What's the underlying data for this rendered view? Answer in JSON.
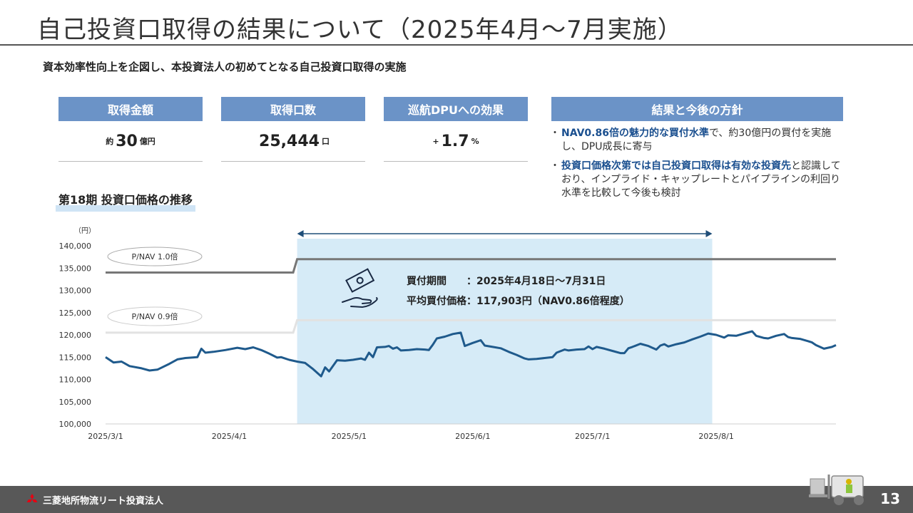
{
  "title": "自己投資口取得の結果について（2025年4月～7月実施）",
  "subtitle": "資本効率性向上を企図し、本投資法人の初めてとなる自己投資口取得の実施",
  "kpis": [
    {
      "header": "取得金額",
      "prefix": "約",
      "value": "30",
      "suffix": "億円"
    },
    {
      "header": "取得口数",
      "prefix": "",
      "value": "25,444",
      "suffix": "口"
    },
    {
      "header": "巡航DPUへの効果",
      "prefix": "+",
      "value": "1.7",
      "suffix": "%"
    }
  ],
  "result": {
    "header": "結果と今後の方針",
    "bullets": [
      {
        "highlight": "NAV0.86倍の魅力的な買付水準",
        "text": "で、約30億円の買付を実施し、DPU成長に寄与"
      },
      {
        "highlight": "投資口価格次第では自己投資口取得は有効な投資先",
        "text": "と認識しており、インプライド・キャップレートとパイプラインの利回り水準を比較して今後も検討"
      }
    ]
  },
  "section_label": "第18期 投資口価格の推移",
  "annotation": {
    "period_label": "買付期間　　：2025年4月18日～7月31日",
    "price_label": "平均買付価格：117,903円（NAV0.86倍程度）"
  },
  "footer": {
    "company": "三菱地所物流リート投資法人",
    "page": "13"
  },
  "colors": {
    "accent": "#6b93c7",
    "price_line": "#1f5a8c",
    "highlight_band": "#d6ebf7",
    "nav_line": "#777777"
  },
  "icons": [
    "money-hand-icon",
    "mitsubishi-logo-icon",
    "forklift-icon"
  ],
  "chart_data": {
    "type": "line",
    "yunit": "（円）",
    "ylim": [
      100000,
      140000
    ],
    "yticks": [
      "100,000",
      "105,000",
      "110,000",
      "115,000",
      "120,000",
      "125,000",
      "130,000",
      "135,000",
      "140,000"
    ],
    "ytick_values": [
      100000,
      105000,
      110000,
      115000,
      120000,
      125000,
      130000,
      135000,
      140000
    ],
    "xlim": [
      "2025-03-01",
      "2025-08-31"
    ],
    "xticks": [
      "2025/3/1",
      "2025/4/1",
      "2025/5/1",
      "2025/6/1",
      "2025/7/1",
      "2025/8/1"
    ],
    "xtick_dates": [
      "2025-03-01",
      "2025-04-01",
      "2025-05-01",
      "2025-06-01",
      "2025-07-01",
      "2025-08-01"
    ],
    "buyback_period": [
      "2025-04-18",
      "2025-07-31"
    ],
    "series": [
      {
        "type": "step",
        "label": "P/NAV 1.0倍",
        "points": [
          [
            "2025-03-01",
            134000
          ],
          [
            "2025-04-17",
            134000
          ],
          [
            "2025-04-18",
            137000
          ],
          [
            "2025-08-31",
            137000
          ]
        ]
      },
      {
        "type": "step",
        "label": "P/NAV 0.9倍",
        "points": [
          [
            "2025-03-01",
            120500
          ],
          [
            "2025-04-17",
            120500
          ],
          [
            "2025-04-18",
            123300
          ],
          [
            "2025-08-31",
            123300
          ]
        ]
      },
      {
        "type": "price",
        "points": [
          [
            "2025-03-01",
            115000
          ],
          [
            "2025-03-03",
            113800
          ],
          [
            "2025-03-05",
            114000
          ],
          [
            "2025-03-07",
            113000
          ],
          [
            "2025-03-10",
            112500
          ],
          [
            "2025-03-12",
            112000
          ],
          [
            "2025-03-14",
            112200
          ],
          [
            "2025-03-17",
            113500
          ],
          [
            "2025-03-19",
            114500
          ],
          [
            "2025-03-21",
            114800
          ],
          [
            "2025-03-24",
            115000
          ],
          [
            "2025-03-25",
            116900
          ],
          [
            "2025-03-26",
            116000
          ],
          [
            "2025-03-28",
            116200
          ],
          [
            "2025-03-31",
            116600
          ],
          [
            "2025-04-03",
            117100
          ],
          [
            "2025-04-05",
            116800
          ],
          [
            "2025-04-07",
            117200
          ],
          [
            "2025-04-09",
            116600
          ],
          [
            "2025-04-11",
            115800
          ],
          [
            "2025-04-13",
            114900
          ],
          [
            "2025-04-14",
            115000
          ],
          [
            "2025-04-16",
            114400
          ],
          [
            "2025-04-18",
            114000
          ],
          [
            "2025-04-20",
            113700
          ],
          [
            "2025-04-22",
            112300
          ],
          [
            "2025-04-24",
            110700
          ],
          [
            "2025-04-25",
            112700
          ],
          [
            "2025-04-26",
            111800
          ],
          [
            "2025-04-28",
            114300
          ],
          [
            "2025-04-30",
            114200
          ],
          [
            "2025-05-02",
            114400
          ],
          [
            "2025-05-04",
            114700
          ],
          [
            "2025-05-05",
            114400
          ],
          [
            "2025-05-06",
            116000
          ],
          [
            "2025-05-07",
            115000
          ],
          [
            "2025-05-08",
            117200
          ],
          [
            "2025-05-10",
            117300
          ],
          [
            "2025-05-11",
            117500
          ],
          [
            "2025-05-12",
            116900
          ],
          [
            "2025-05-13",
            117200
          ],
          [
            "2025-05-14",
            116500
          ],
          [
            "2025-05-16",
            116600
          ],
          [
            "2025-05-18",
            116800
          ],
          [
            "2025-05-20",
            116700
          ],
          [
            "2025-05-21",
            116600
          ],
          [
            "2025-05-22",
            117800
          ],
          [
            "2025-05-23",
            119200
          ],
          [
            "2025-05-25",
            119600
          ],
          [
            "2025-05-27",
            120200
          ],
          [
            "2025-05-29",
            120500
          ],
          [
            "2025-05-30",
            117500
          ],
          [
            "2025-06-01",
            118200
          ],
          [
            "2025-06-03",
            118800
          ],
          [
            "2025-06-04",
            117600
          ],
          [
            "2025-06-06",
            117300
          ],
          [
            "2025-06-08",
            117000
          ],
          [
            "2025-06-10",
            116200
          ],
          [
            "2025-06-12",
            115500
          ],
          [
            "2025-06-14",
            114700
          ],
          [
            "2025-06-15",
            114500
          ],
          [
            "2025-06-17",
            114600
          ],
          [
            "2025-06-19",
            114800
          ],
          [
            "2025-06-21",
            115000
          ],
          [
            "2025-06-22",
            116000
          ],
          [
            "2025-06-24",
            116700
          ],
          [
            "2025-06-25",
            116500
          ],
          [
            "2025-06-27",
            116700
          ],
          [
            "2025-06-29",
            116800
          ],
          [
            "2025-06-30",
            117400
          ],
          [
            "2025-07-01",
            116800
          ],
          [
            "2025-07-02",
            117300
          ],
          [
            "2025-07-04",
            116900
          ],
          [
            "2025-07-06",
            116400
          ],
          [
            "2025-07-08",
            115900
          ],
          [
            "2025-07-09",
            115900
          ],
          [
            "2025-07-10",
            117000
          ],
          [
            "2025-07-11",
            117300
          ],
          [
            "2025-07-13",
            118000
          ],
          [
            "2025-07-15",
            117500
          ],
          [
            "2025-07-17",
            116700
          ],
          [
            "2025-07-18",
            117600
          ],
          [
            "2025-07-19",
            117900
          ],
          [
            "2025-07-20",
            117400
          ],
          [
            "2025-07-22",
            117900
          ],
          [
            "2025-07-24",
            118300
          ],
          [
            "2025-07-26",
            119000
          ],
          [
            "2025-07-28",
            119600
          ],
          [
            "2025-07-30",
            120300
          ],
          [
            "2025-08-01",
            120000
          ],
          [
            "2025-08-03",
            119400
          ],
          [
            "2025-08-04",
            119900
          ],
          [
            "2025-08-06",
            119800
          ],
          [
            "2025-08-08",
            120300
          ],
          [
            "2025-08-10",
            120800
          ],
          [
            "2025-08-11",
            119800
          ],
          [
            "2025-08-13",
            119300
          ],
          [
            "2025-08-14",
            119200
          ],
          [
            "2025-08-16",
            119800
          ],
          [
            "2025-08-18",
            120200
          ],
          [
            "2025-08-19",
            119500
          ],
          [
            "2025-08-20",
            119300
          ],
          [
            "2025-08-22",
            119100
          ],
          [
            "2025-08-24",
            118600
          ],
          [
            "2025-08-25",
            118300
          ],
          [
            "2025-08-26",
            117700
          ],
          [
            "2025-08-28",
            116900
          ],
          [
            "2025-08-30",
            117300
          ],
          [
            "2025-08-31",
            117700
          ]
        ]
      }
    ]
  }
}
